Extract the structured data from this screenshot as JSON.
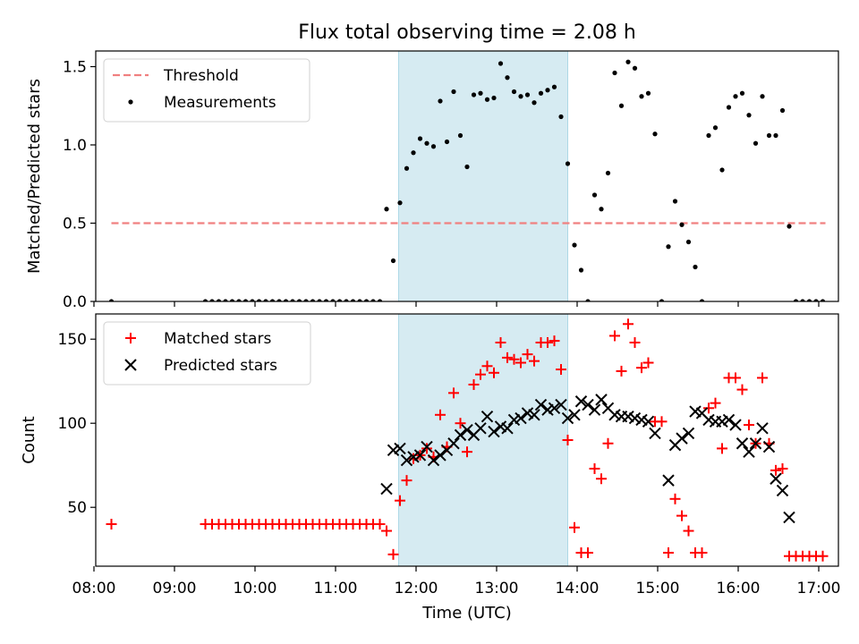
{
  "figure": {
    "title": "Flux total observing time = 2.08 h",
    "xlabel": "Time (UTC)",
    "x_ticks": [
      "08:00",
      "09:00",
      "10:00",
      "11:00",
      "12:00",
      "13:00",
      "14:00",
      "15:00",
      "16:00",
      "17:00"
    ],
    "highlight_span": [
      "11:47",
      "13:53"
    ],
    "highlight_color": "#add8e6"
  },
  "chart_data": [
    {
      "type": "scatter",
      "ylabel": "Matched/Predicted stars",
      "ylim": [
        0,
        1.6
      ],
      "yticks": [
        "0.0",
        "0.5",
        "1.0",
        "1.5"
      ],
      "legend_position": "top-left",
      "threshold": {
        "name": "Threshold",
        "value": 0.5,
        "x_range": [
          "08:13",
          "17:05"
        ],
        "color": "#f08080"
      },
      "series": [
        {
          "name": "Measurements",
          "color": "#000000",
          "points": [
            [
              "08:13",
              0.0
            ],
            [
              "09:23",
              0.0
            ],
            [
              "09:28",
              0.0
            ],
            [
              "09:33",
              0.0
            ],
            [
              "09:38",
              0.0
            ],
            [
              "09:43",
              0.0
            ],
            [
              "09:48",
              0.0
            ],
            [
              "09:53",
              0.0
            ],
            [
              "09:58",
              0.0
            ],
            [
              "10:03",
              0.0
            ],
            [
              "10:08",
              0.0
            ],
            [
              "10:13",
              0.0
            ],
            [
              "10:18",
              0.0
            ],
            [
              "10:23",
              0.0
            ],
            [
              "10:28",
              0.0
            ],
            [
              "10:33",
              0.0
            ],
            [
              "10:38",
              0.0
            ],
            [
              "10:43",
              0.0
            ],
            [
              "10:48",
              0.0
            ],
            [
              "10:53",
              0.0
            ],
            [
              "10:58",
              0.0
            ],
            [
              "11:03",
              0.0
            ],
            [
              "11:08",
              0.0
            ],
            [
              "11:13",
              0.0
            ],
            [
              "11:18",
              0.0
            ],
            [
              "11:23",
              0.0
            ],
            [
              "11:28",
              0.0
            ],
            [
              "11:33",
              0.0
            ],
            [
              "11:38",
              0.59
            ],
            [
              "11:43",
              0.26
            ],
            [
              "11:48",
              0.63
            ],
            [
              "11:53",
              0.85
            ],
            [
              "11:58",
              0.95
            ],
            [
              "12:03",
              1.04
            ],
            [
              "12:08",
              1.01
            ],
            [
              "12:13",
              0.99
            ],
            [
              "12:18",
              1.28
            ],
            [
              "12:23",
              1.02
            ],
            [
              "12:28",
              1.34
            ],
            [
              "12:33",
              1.06
            ],
            [
              "12:38",
              0.86
            ],
            [
              "12:43",
              1.32
            ],
            [
              "12:48",
              1.33
            ],
            [
              "12:53",
              1.29
            ],
            [
              "12:58",
              1.3
            ],
            [
              "13:03",
              1.52
            ],
            [
              "13:08",
              1.43
            ],
            [
              "13:13",
              1.34
            ],
            [
              "13:18",
              1.31
            ],
            [
              "13:23",
              1.32
            ],
            [
              "13:28",
              1.27
            ],
            [
              "13:33",
              1.33
            ],
            [
              "13:38",
              1.35
            ],
            [
              "13:43",
              1.37
            ],
            [
              "13:48",
              1.18
            ],
            [
              "13:53",
              0.88
            ],
            [
              "13:58",
              0.36
            ],
            [
              "14:03",
              0.2
            ],
            [
              "14:08",
              0.0
            ],
            [
              "14:13",
              0.68
            ],
            [
              "14:18",
              0.59
            ],
            [
              "14:23",
              0.82
            ],
            [
              "14:28",
              1.46
            ],
            [
              "14:33",
              1.25
            ],
            [
              "14:38",
              1.53
            ],
            [
              "14:43",
              1.49
            ],
            [
              "14:48",
              1.31
            ],
            [
              "14:53",
              1.33
            ],
            [
              "14:58",
              1.07
            ],
            [
              "15:03",
              0.0
            ],
            [
              "15:08",
              0.35
            ],
            [
              "15:13",
              0.64
            ],
            [
              "15:18",
              0.49
            ],
            [
              "15:23",
              0.38
            ],
            [
              "15:28",
              0.22
            ],
            [
              "15:33",
              0.0
            ],
            [
              "15:38",
              1.06
            ],
            [
              "15:43",
              1.11
            ],
            [
              "15:48",
              0.84
            ],
            [
              "15:53",
              1.24
            ],
            [
              "15:58",
              1.31
            ],
            [
              "16:03",
              1.33
            ],
            [
              "16:08",
              1.19
            ],
            [
              "16:13",
              1.01
            ],
            [
              "16:18",
              1.31
            ],
            [
              "16:23",
              1.06
            ],
            [
              "16:28",
              1.06
            ],
            [
              "16:33",
              1.22
            ],
            [
              "16:38",
              0.48
            ],
            [
              "16:43",
              0.0
            ],
            [
              "16:48",
              0.0
            ],
            [
              "16:53",
              0.0
            ],
            [
              "16:58",
              0.0
            ],
            [
              "17:03",
              0.0
            ]
          ]
        }
      ]
    },
    {
      "type": "scatter",
      "ylabel": "Count",
      "ylim": [
        15,
        165
      ],
      "yticks": [
        "50",
        "100",
        "150"
      ],
      "legend_position": "top-left",
      "series": [
        {
          "name": "Matched stars",
          "marker": "+",
          "color": "#ff0000",
          "points": [
            [
              "08:13",
              40
            ],
            [
              "09:23",
              40
            ],
            [
              "09:28",
              40
            ],
            [
              "09:33",
              40
            ],
            [
              "09:38",
              40
            ],
            [
              "09:43",
              40
            ],
            [
              "09:48",
              40
            ],
            [
              "09:53",
              40
            ],
            [
              "09:58",
              40
            ],
            [
              "10:03",
              40
            ],
            [
              "10:08",
              40
            ],
            [
              "10:13",
              40
            ],
            [
              "10:18",
              40
            ],
            [
              "10:23",
              40
            ],
            [
              "10:28",
              40
            ],
            [
              "10:33",
              40
            ],
            [
              "10:38",
              40
            ],
            [
              "10:43",
              40
            ],
            [
              "10:48",
              40
            ],
            [
              "10:53",
              40
            ],
            [
              "10:58",
              40
            ],
            [
              "11:03",
              40
            ],
            [
              "11:08",
              40
            ],
            [
              "11:13",
              40
            ],
            [
              "11:18",
              40
            ],
            [
              "11:23",
              40
            ],
            [
              "11:28",
              40
            ],
            [
              "11:33",
              40
            ],
            [
              "11:38",
              36
            ],
            [
              "11:43",
              22
            ],
            [
              "11:48",
              54
            ],
            [
              "11:53",
              66
            ],
            [
              "11:58",
              79
            ],
            [
              "12:03",
              81
            ],
            [
              "12:08",
              85
            ],
            [
              "12:13",
              80
            ],
            [
              "12:18",
              105
            ],
            [
              "12:23",
              86
            ],
            [
              "12:28",
              118
            ],
            [
              "12:33",
              100
            ],
            [
              "12:38",
              83
            ],
            [
              "12:43",
              123
            ],
            [
              "12:48",
              129
            ],
            [
              "12:53",
              134
            ],
            [
              "12:58",
              130
            ],
            [
              "13:03",
              148
            ],
            [
              "13:08",
              139
            ],
            [
              "13:13",
              138
            ],
            [
              "13:18",
              136
            ],
            [
              "13:23",
              141
            ],
            [
              "13:28",
              137
            ],
            [
              "13:33",
              148
            ],
            [
              "13:38",
              148
            ],
            [
              "13:43",
              149
            ],
            [
              "13:48",
              132
            ],
            [
              "13:53",
              90
            ],
            [
              "13:58",
              38
            ],
            [
              "14:03",
              23
            ],
            [
              "14:08",
              23
            ],
            [
              "14:13",
              73
            ],
            [
              "14:18",
              67
            ],
            [
              "14:23",
              88
            ],
            [
              "14:28",
              152
            ],
            [
              "14:33",
              131
            ],
            [
              "14:38",
              159
            ],
            [
              "14:43",
              148
            ],
            [
              "14:48",
              133
            ],
            [
              "14:53",
              136
            ],
            [
              "14:58",
              101
            ],
            [
              "15:03",
              101
            ],
            [
              "15:08",
              23
            ],
            [
              "15:13",
              55
            ],
            [
              "15:18",
              45
            ],
            [
              "15:23",
              36
            ],
            [
              "15:28",
              23
            ],
            [
              "15:33",
              23
            ],
            [
              "15:38",
              109
            ],
            [
              "15:43",
              112
            ],
            [
              "15:48",
              85
            ],
            [
              "15:53",
              127
            ],
            [
              "15:58",
              127
            ],
            [
              "16:03",
              120
            ],
            [
              "16:08",
              99
            ],
            [
              "16:13",
              88
            ],
            [
              "16:18",
              127
            ],
            [
              "16:23",
              88
            ],
            [
              "16:28",
              72
            ],
            [
              "16:33",
              73
            ],
            [
              "16:38",
              21
            ],
            [
              "16:43",
              21
            ],
            [
              "16:48",
              21
            ],
            [
              "16:53",
              21
            ],
            [
              "16:58",
              21
            ],
            [
              "17:03",
              21
            ]
          ]
        },
        {
          "name": "Predicted stars",
          "marker": "x",
          "color": "#000000",
          "points": [
            [
              "11:38",
              61
            ],
            [
              "11:43",
              84
            ],
            [
              "11:48",
              85
            ],
            [
              "11:53",
              78
            ],
            [
              "11:58",
              80
            ],
            [
              "12:03",
              81
            ],
            [
              "12:08",
              86
            ],
            [
              "12:13",
              78
            ],
            [
              "12:18",
              81
            ],
            [
              "12:23",
              84
            ],
            [
              "12:28",
              88
            ],
            [
              "12:33",
              93
            ],
            [
              "12:38",
              96
            ],
            [
              "12:43",
              93
            ],
            [
              "12:48",
              97
            ],
            [
              "12:53",
              104
            ],
            [
              "12:58",
              95
            ],
            [
              "13:03",
              98
            ],
            [
              "13:08",
              97
            ],
            [
              "13:13",
              102
            ],
            [
              "13:18",
              103
            ],
            [
              "13:23",
              106
            ],
            [
              "13:28",
              105
            ],
            [
              "13:33",
              111
            ],
            [
              "13:38",
              108
            ],
            [
              "13:43",
              109
            ],
            [
              "13:48",
              111
            ],
            [
              "13:53",
              103
            ],
            [
              "13:58",
              105
            ],
            [
              "14:03",
              113
            ],
            [
              "14:08",
              111
            ],
            [
              "14:13",
              108
            ],
            [
              "14:18",
              114
            ],
            [
              "14:23",
              109
            ],
            [
              "14:28",
              105
            ],
            [
              "14:33",
              104
            ],
            [
              "14:38",
              104
            ],
            [
              "14:43",
              103
            ],
            [
              "14:48",
              102
            ],
            [
              "14:53",
              101
            ],
            [
              "14:58",
              94
            ],
            [
              "15:08",
              66
            ],
            [
              "15:13",
              87
            ],
            [
              "15:18",
              91
            ],
            [
              "15:23",
              94
            ],
            [
              "15:28",
              107
            ],
            [
              "15:33",
              106
            ],
            [
              "15:38",
              102
            ],
            [
              "15:43",
              101
            ],
            [
              "15:48",
              101
            ],
            [
              "15:53",
              102
            ],
            [
              "15:58",
              99
            ],
            [
              "16:03",
              88
            ],
            [
              "16:08",
              83
            ],
            [
              "16:13",
              88
            ],
            [
              "16:18",
              97
            ],
            [
              "16:23",
              86
            ],
            [
              "16:28",
              67
            ],
            [
              "16:33",
              60
            ],
            [
              "16:38",
              44
            ]
          ]
        }
      ]
    }
  ]
}
